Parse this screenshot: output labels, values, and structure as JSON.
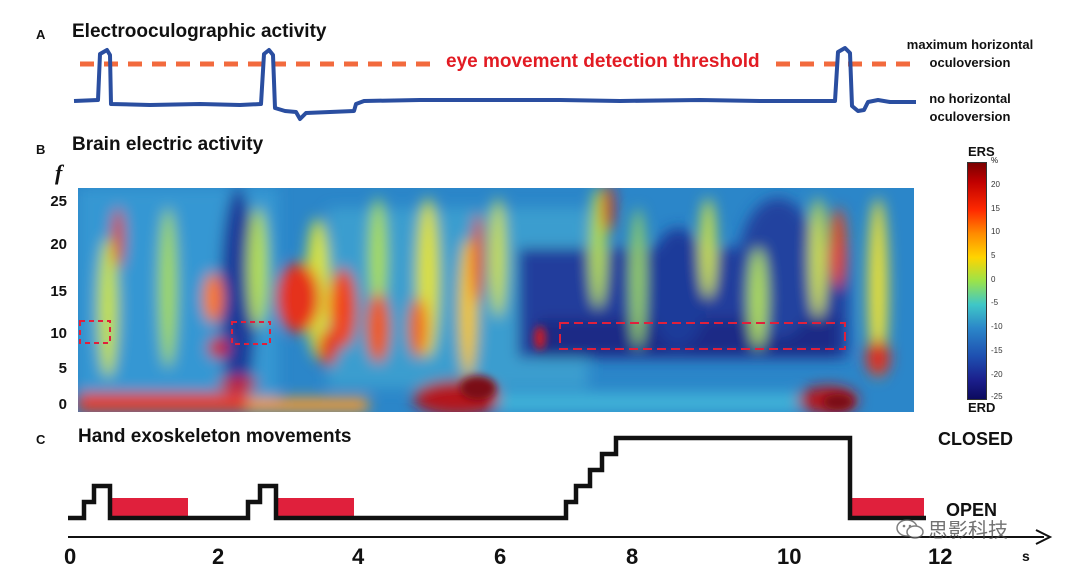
{
  "panel_a": {
    "letter": "A",
    "title": "Electrooculographic activity",
    "threshold_label": "eye movement detection threshold",
    "label_max": "maximum horizontal oculoversion",
    "label_max_line1": "maximum horizontal",
    "label_max_line2": "oculoversion",
    "label_none_line1": "no horizontal",
    "label_none_line2": "oculoversion",
    "trace_color": "#2a4ea0",
    "threshold_color": "#f26a3d"
  },
  "panel_b": {
    "letter": "B",
    "title": "Brain electric activity",
    "y_axis_label": "f",
    "y_ticks": [
      "25",
      "20",
      "15",
      "10",
      "5",
      "0"
    ],
    "colorbar": {
      "top_label": "ERS",
      "bottom_label": "ERD",
      "unit": "%",
      "ticks": [
        "20",
        "15",
        "10",
        "5",
        "0",
        "-5",
        "-10",
        "-15",
        "-20",
        "-25"
      ]
    }
  },
  "panel_c": {
    "letter": "C",
    "title": "Hand exoskeleton movements",
    "state_closed": "CLOSED",
    "state_open": "OPEN",
    "highlight_color": "#e0203c"
  },
  "time_axis": {
    "ticks": [
      "0",
      "2",
      "4",
      "6",
      "8",
      "10",
      "12"
    ],
    "unit": "s"
  },
  "watermark": {
    "icon": "wechat-icon",
    "text": "思影科技"
  }
}
